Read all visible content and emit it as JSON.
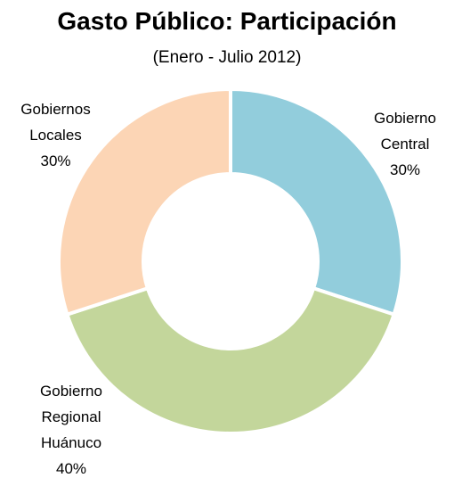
{
  "chart_data": {
    "type": "donut",
    "title": "Gasto Público: Participación",
    "subtitle": "(Enero - Julio 2012)",
    "categories": [
      "Gobierno Central",
      "Gobierno Regional Huánuco",
      "Gobiernos Locales"
    ],
    "values": [
      30,
      40,
      30
    ],
    "value_labels": [
      "30%",
      "40%",
      "30%"
    ],
    "colors": [
      "#92cddc",
      "#c3d69b",
      "#fcd5b5"
    ]
  }
}
